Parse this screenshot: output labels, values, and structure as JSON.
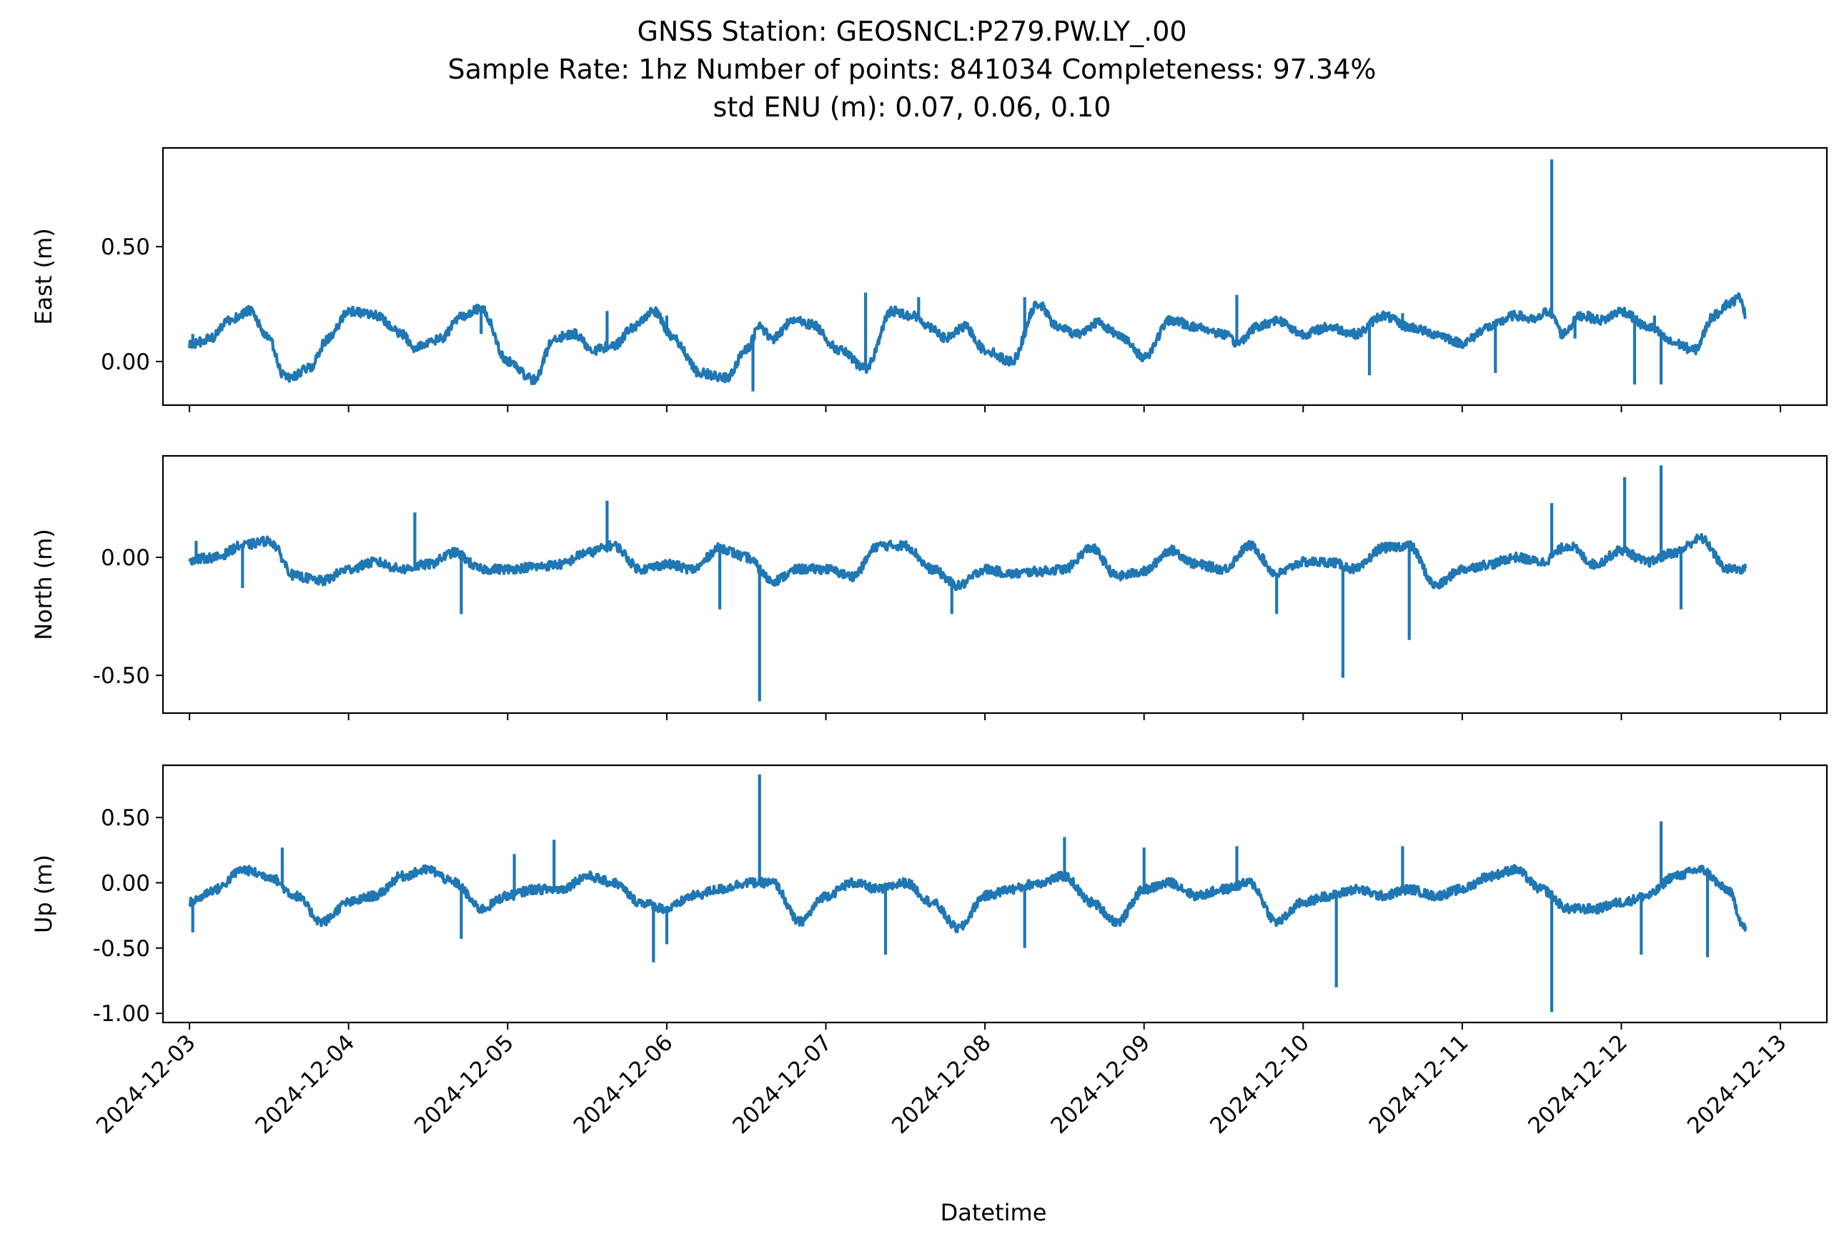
{
  "figure": {
    "title_lines": [
      "GNSS Station: GEOSNCL:P279.PW.LY_.00",
      "Sample Rate: 1hz   Number of points: 841034    Completeness:  97.34%",
      "std ENU (m):  0.07, 0.06, 0.10"
    ],
    "line_color": "#1f77b4"
  },
  "chart_data": {
    "type": "line",
    "shared_x": true,
    "xlabel": "Datetime",
    "x_ticks": [
      "2024-12-03",
      "2024-12-04",
      "2024-12-05",
      "2024-12-06",
      "2024-12-07",
      "2024-12-08",
      "2024-12-09",
      "2024-12-10",
      "2024-12-11",
      "2024-12-12",
      "2024-12-13"
    ],
    "xlim": [
      "2024-12-02T20:00",
      "2024-12-13T07:00"
    ],
    "x_data_range": [
      "2024-12-03T00:00",
      "2024-12-12T18:45"
    ],
    "panels": [
      {
        "ylabel": "East (m)",
        "ylim": [
          -0.19,
          0.93
        ],
        "yticks": [
          0.0,
          0.5
        ],
        "ytick_labels": [
          "0.00",
          "0.50"
        ],
        "x": [
          "2024-12-03T00:00",
          "2024-12-03T03:00",
          "2024-12-03T06:00",
          "2024-12-03T09:00",
          "2024-12-03T12:00",
          "2024-12-03T14:00",
          "2024-12-03T15:00",
          "2024-12-03T18:00",
          "2024-12-03T21:00",
          "2024-12-04T00:00",
          "2024-12-04T04:00",
          "2024-12-04T08:00",
          "2024-12-04T10:00",
          "2024-12-04T12:00",
          "2024-12-04T14:00",
          "2024-12-04T17:00",
          "2024-12-04T20:00",
          "2024-12-05T00:00",
          "2024-12-05T04:00",
          "2024-12-05T07:00",
          "2024-12-05T10:00",
          "2024-12-05T13:00",
          "2024-12-05T16:00",
          "2024-12-05T19:00",
          "2024-12-05T22:00",
          "2024-12-06T01:00",
          "2024-12-06T05:00",
          "2024-12-06T09:00",
          "2024-12-06T12:00",
          "2024-12-06T14:00",
          "2024-12-06T16:00",
          "2024-12-06T19:00",
          "2024-12-06T22:00",
          "2024-12-07T02:00",
          "2024-12-07T06:00",
          "2024-12-07T10:00",
          "2024-12-07T13:00",
          "2024-12-07T16:00",
          "2024-12-07T18:00",
          "2024-12-07T21:00",
          "2024-12-08T00:00",
          "2024-12-08T04:00",
          "2024-12-08T08:00",
          "2024-12-08T11:00",
          "2024-12-08T14:00",
          "2024-12-08T17:00",
          "2024-12-08T20:00",
          "2024-12-09T00:00",
          "2024-12-09T04:00",
          "2024-12-09T08:00",
          "2024-12-09T12:00",
          "2024-12-09T14:00",
          "2024-12-09T17:00",
          "2024-12-09T20:00",
          "2024-12-10T00:00",
          "2024-12-10T04:00",
          "2024-12-10T08:00",
          "2024-12-10T12:00",
          "2024-12-10T16:00",
          "2024-12-10T20:00",
          "2024-12-11T00:00",
          "2024-12-11T04:00",
          "2024-12-11T08:00",
          "2024-12-11T11:00",
          "2024-12-11T13:00",
          "2024-12-11T14:00",
          "2024-12-11T15:00",
          "2024-12-11T18:00",
          "2024-12-11T21:00",
          "2024-12-12T00:00",
          "2024-12-12T04:00",
          "2024-12-12T08:00",
          "2024-12-12T11:00",
          "2024-12-12T14:00",
          "2024-12-12T16:00",
          "2024-12-12T18:00",
          "2024-12-12T18:45"
        ],
        "values": [
          0.07,
          0.1,
          0.18,
          0.22,
          0.1,
          -0.05,
          -0.07,
          -0.03,
          0.1,
          0.22,
          0.2,
          0.12,
          0.06,
          0.08,
          0.1,
          0.2,
          0.23,
          0.0,
          -0.08,
          0.1,
          0.12,
          0.05,
          0.07,
          0.15,
          0.22,
          0.1,
          -0.05,
          -0.07,
          0.05,
          0.15,
          0.1,
          0.18,
          0.16,
          0.05,
          -0.03,
          0.22,
          0.2,
          0.15,
          0.1,
          0.15,
          0.05,
          0.0,
          0.25,
          0.15,
          0.12,
          0.17,
          0.12,
          0.02,
          0.18,
          0.15,
          0.12,
          0.08,
          0.15,
          0.18,
          0.12,
          0.15,
          0.12,
          0.2,
          0.15,
          0.12,
          0.08,
          0.15,
          0.2,
          0.18,
          0.22,
          0.18,
          0.12,
          0.2,
          0.18,
          0.22,
          0.15,
          0.08,
          0.05,
          0.2,
          0.25,
          0.28,
          0.2
        ],
        "spikes": [
          {
            "x": "2024-12-03T00:30",
            "y": 0.12
          },
          {
            "x": "2024-12-04T20:00",
            "y": 0.12
          },
          {
            "x": "2024-12-05T15:00",
            "y": 0.22
          },
          {
            "x": "2024-12-06T13:00",
            "y": -0.13
          },
          {
            "x": "2024-12-06T00:00",
            "y": 0.2
          },
          {
            "x": "2024-12-07T06:00",
            "y": 0.3
          },
          {
            "x": "2024-12-07T14:00",
            "y": 0.28
          },
          {
            "x": "2024-12-08T06:00",
            "y": 0.28
          },
          {
            "x": "2024-12-09T14:00",
            "y": 0.29
          },
          {
            "x": "2024-12-10T10:00",
            "y": -0.06
          },
          {
            "x": "2024-12-10T15:00",
            "y": 0.21
          },
          {
            "x": "2024-12-11T05:00",
            "y": -0.05
          },
          {
            "x": "2024-12-11T13:30",
            "y": 0.88
          },
          {
            "x": "2024-12-11T17:00",
            "y": 0.1
          },
          {
            "x": "2024-12-12T02:00",
            "y": -0.1
          },
          {
            "x": "2024-12-12T05:00",
            "y": 0.2
          },
          {
            "x": "2024-12-12T06:00",
            "y": -0.1
          }
        ]
      },
      {
        "ylabel": "North (m)",
        "ylim": [
          -0.66,
          0.43
        ],
        "yticks": [
          0.0,
          -0.5
        ],
        "ytick_labels": [
          "0.00",
          "-0.50"
        ],
        "x": [
          "2024-12-03T00:00",
          "2024-12-03T04:00",
          "2024-12-03T08:00",
          "2024-12-03T12:00",
          "2024-12-03T16:00",
          "2024-12-03T20:00",
          "2024-12-04T00:00",
          "2024-12-04T04:00",
          "2024-12-04T08:00",
          "2024-12-04T12:00",
          "2024-12-04T16:00",
          "2024-12-04T20:00",
          "2024-12-05T00:00",
          "2024-12-05T04:00",
          "2024-12-05T08:00",
          "2024-12-05T12:00",
          "2024-12-05T16:00",
          "2024-12-05T20:00",
          "2024-12-06T00:00",
          "2024-12-06T04:00",
          "2024-12-06T08:00",
          "2024-12-06T12:00",
          "2024-12-06T16:00",
          "2024-12-06T20:00",
          "2024-12-07T00:00",
          "2024-12-07T04:00",
          "2024-12-07T08:00",
          "2024-12-07T12:00",
          "2024-12-07T16:00",
          "2024-12-07T20:00",
          "2024-12-08T00:00",
          "2024-12-08T04:00",
          "2024-12-08T08:00",
          "2024-12-08T12:00",
          "2024-12-08T16:00",
          "2024-12-08T20:00",
          "2024-12-09T00:00",
          "2024-12-09T04:00",
          "2024-12-09T08:00",
          "2024-12-09T12:00",
          "2024-12-09T16:00",
          "2024-12-09T20:00",
          "2024-12-10T00:00",
          "2024-12-10T04:00",
          "2024-12-10T08:00",
          "2024-12-10T12:00",
          "2024-12-10T16:00",
          "2024-12-10T20:00",
          "2024-12-11T00:00",
          "2024-12-11T04:00",
          "2024-12-11T08:00",
          "2024-12-11T12:00",
          "2024-12-11T16:00",
          "2024-12-11T20:00",
          "2024-12-12T00:00",
          "2024-12-12T04:00",
          "2024-12-12T08:00",
          "2024-12-12T12:00",
          "2024-12-12T16:00",
          "2024-12-12T18:45"
        ],
        "values": [
          -0.01,
          0.0,
          0.05,
          0.07,
          -0.08,
          -0.1,
          -0.05,
          -0.02,
          -0.05,
          -0.03,
          0.02,
          -0.05,
          -0.05,
          -0.04,
          -0.03,
          0.02,
          0.05,
          -0.05,
          -0.03,
          -0.05,
          0.04,
          0.0,
          -0.1,
          -0.05,
          -0.05,
          -0.08,
          0.05,
          0.05,
          -0.05,
          -0.12,
          -0.05,
          -0.07,
          -0.06,
          -0.05,
          0.04,
          -0.08,
          -0.06,
          0.03,
          -0.03,
          -0.05,
          0.05,
          -0.07,
          -0.02,
          -0.02,
          -0.05,
          0.04,
          0.05,
          -0.12,
          -0.05,
          -0.03,
          0.0,
          -0.02,
          0.05,
          -0.03,
          0.03,
          -0.02,
          0.02,
          0.08,
          -0.05,
          -0.05
        ],
        "spikes": [
          {
            "x": "2024-12-03T01:00",
            "y": 0.07
          },
          {
            "x": "2024-12-03T08:00",
            "y": -0.13
          },
          {
            "x": "2024-12-04T10:00",
            "y": 0.19
          },
          {
            "x": "2024-12-04T17:00",
            "y": -0.24
          },
          {
            "x": "2024-12-05T15:00",
            "y": 0.24
          },
          {
            "x": "2024-12-06T08:00",
            "y": -0.22
          },
          {
            "x": "2024-12-06T14:00",
            "y": -0.61
          },
          {
            "x": "2024-12-07T19:00",
            "y": -0.24
          },
          {
            "x": "2024-12-09T20:00",
            "y": -0.24
          },
          {
            "x": "2024-12-10T06:00",
            "y": -0.51
          },
          {
            "x": "2024-12-10T16:00",
            "y": -0.35
          },
          {
            "x": "2024-12-11T13:30",
            "y": 0.23
          },
          {
            "x": "2024-12-12T00:30",
            "y": 0.34
          },
          {
            "x": "2024-12-12T06:00",
            "y": 0.39
          },
          {
            "x": "2024-12-12T09:00",
            "y": -0.22
          }
        ]
      },
      {
        "ylabel": "Up (m)",
        "ylim": [
          -1.07,
          0.9
        ],
        "yticks": [
          0.5,
          0.0,
          -0.5,
          -1.0
        ],
        "ytick_labels": [
          "0.50",
          "0.00",
          "-0.50",
          "-1.00"
        ],
        "x": [
          "2024-12-03T00:00",
          "2024-12-03T04:00",
          "2024-12-03T08:00",
          "2024-12-03T12:00",
          "2024-12-03T16:00",
          "2024-12-03T20:00",
          "2024-12-04T00:00",
          "2024-12-04T04:00",
          "2024-12-04T08:00",
          "2024-12-04T12:00",
          "2024-12-04T16:00",
          "2024-12-04T20:00",
          "2024-12-05T00:00",
          "2024-12-05T04:00",
          "2024-12-05T08:00",
          "2024-12-05T12:00",
          "2024-12-05T16:00",
          "2024-12-05T20:00",
          "2024-12-06T00:00",
          "2024-12-06T04:00",
          "2024-12-06T08:00",
          "2024-12-06T12:00",
          "2024-12-06T16:00",
          "2024-12-06T20:00",
          "2024-12-07T00:00",
          "2024-12-07T04:00",
          "2024-12-07T08:00",
          "2024-12-07T12:00",
          "2024-12-07T16:00",
          "2024-12-07T20:00",
          "2024-12-08T00:00",
          "2024-12-08T04:00",
          "2024-12-08T08:00",
          "2024-12-08T12:00",
          "2024-12-08T16:00",
          "2024-12-08T20:00",
          "2024-12-09T00:00",
          "2024-12-09T04:00",
          "2024-12-09T08:00",
          "2024-12-09T12:00",
          "2024-12-09T16:00",
          "2024-12-09T20:00",
          "2024-12-10T00:00",
          "2024-12-10T04:00",
          "2024-12-10T08:00",
          "2024-12-10T12:00",
          "2024-12-10T16:00",
          "2024-12-10T20:00",
          "2024-12-11T00:00",
          "2024-12-11T04:00",
          "2024-12-11T08:00",
          "2024-12-11T12:00",
          "2024-12-11T16:00",
          "2024-12-11T20:00",
          "2024-12-12T00:00",
          "2024-12-12T04:00",
          "2024-12-12T08:00",
          "2024-12-12T12:00",
          "2024-12-12T16:00",
          "2024-12-12T18:45"
        ],
        "values": [
          -0.15,
          -0.05,
          0.1,
          0.05,
          -0.1,
          -0.3,
          -0.15,
          -0.1,
          0.05,
          0.1,
          0.0,
          -0.2,
          -0.1,
          -0.05,
          -0.05,
          0.05,
          0.0,
          -0.15,
          -0.2,
          -0.1,
          -0.05,
          0.0,
          0.0,
          -0.3,
          -0.1,
          0.0,
          -0.05,
          0.0,
          -0.15,
          -0.35,
          -0.1,
          -0.05,
          0.0,
          0.05,
          -0.15,
          -0.3,
          -0.05,
          0.0,
          -0.1,
          -0.05,
          0.0,
          -0.3,
          -0.15,
          -0.1,
          -0.05,
          -0.1,
          -0.05,
          -0.1,
          -0.05,
          0.05,
          0.1,
          -0.05,
          -0.2,
          -0.2,
          -0.15,
          -0.1,
          0.05,
          0.1,
          -0.05,
          -0.35
        ],
        "spikes": [
          {
            "x": "2024-12-03T00:30",
            "y": -0.38
          },
          {
            "x": "2024-12-03T14:00",
            "y": 0.27
          },
          {
            "x": "2024-12-04T17:00",
            "y": -0.43
          },
          {
            "x": "2024-12-05T01:00",
            "y": 0.22
          },
          {
            "x": "2024-12-05T07:00",
            "y": 0.33
          },
          {
            "x": "2024-12-05T22:00",
            "y": -0.61
          },
          {
            "x": "2024-12-06T00:00",
            "y": -0.47
          },
          {
            "x": "2024-12-06T14:00",
            "y": 0.83
          },
          {
            "x": "2024-12-07T09:00",
            "y": -0.55
          },
          {
            "x": "2024-12-08T06:00",
            "y": -0.5
          },
          {
            "x": "2024-12-08T12:00",
            "y": 0.35
          },
          {
            "x": "2024-12-09T00:00",
            "y": 0.27
          },
          {
            "x": "2024-12-09T14:00",
            "y": 0.28
          },
          {
            "x": "2024-12-10T05:00",
            "y": -0.8
          },
          {
            "x": "2024-12-10T15:00",
            "y": 0.28
          },
          {
            "x": "2024-12-11T13:30",
            "y": -0.99
          },
          {
            "x": "2024-12-12T03:00",
            "y": -0.55
          },
          {
            "x": "2024-12-12T06:00",
            "y": 0.47
          },
          {
            "x": "2024-12-12T13:00",
            "y": -0.57
          }
        ]
      }
    ]
  }
}
